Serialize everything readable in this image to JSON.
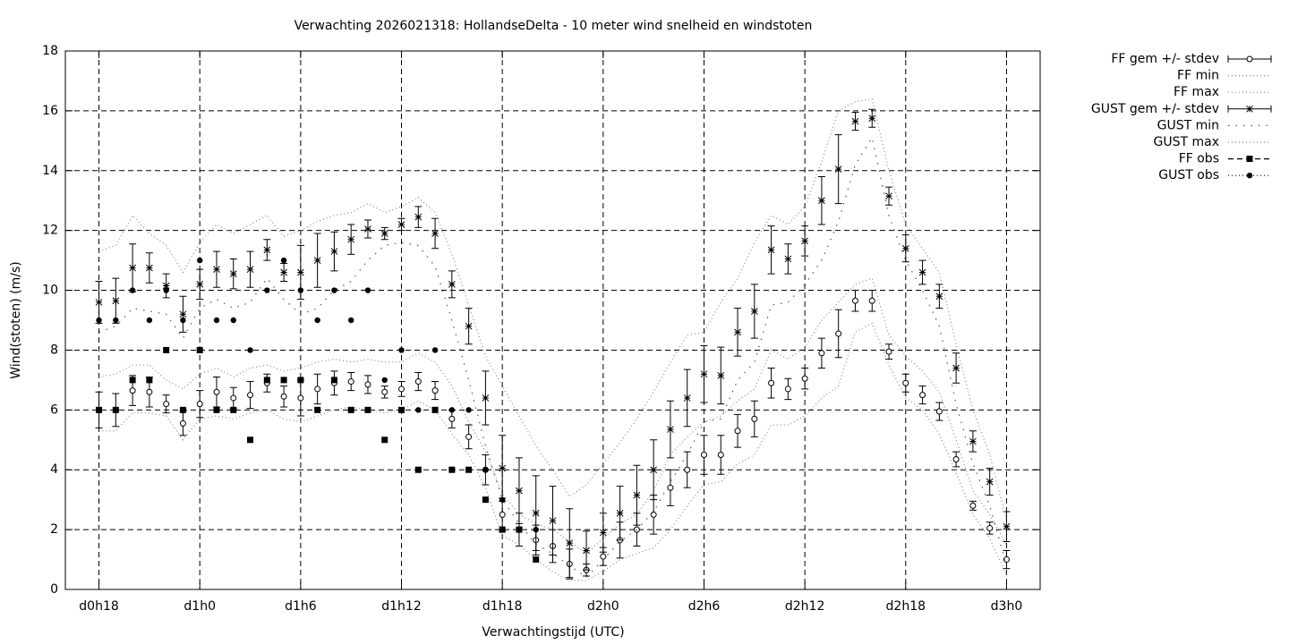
{
  "chart_data": {
    "type": "errorbar-lines",
    "title": "Verwachting 2026021318: HollandseDelta - 10 meter wind snelheid en windstoten",
    "xlabel": "Verwachtingstijd (UTC)",
    "ylabel": "Wind(stoten) (m/s)",
    "x": [
      18,
      19,
      20,
      21,
      22,
      23,
      24,
      25,
      26,
      27,
      28,
      29,
      30,
      31,
      32,
      33,
      34,
      35,
      36,
      37,
      38,
      39,
      40,
      41,
      42,
      43,
      44,
      45,
      46,
      47,
      48,
      49,
      50,
      51,
      52,
      53,
      54,
      55,
      56,
      57,
      58,
      59,
      60,
      61,
      62,
      63,
      64,
      65,
      66,
      67,
      68,
      69,
      70,
      71,
      72
    ],
    "xlim": [
      16,
      74
    ],
    "xticks": [
      {
        "value": 18,
        "label": "d0h18"
      },
      {
        "value": 24,
        "label": "d1h0"
      },
      {
        "value": 30,
        "label": "d1h6"
      },
      {
        "value": 36,
        "label": "d1h12"
      },
      {
        "value": 42,
        "label": "d1h18"
      },
      {
        "value": 48,
        "label": "d2h0"
      },
      {
        "value": 54,
        "label": "d2h6"
      },
      {
        "value": 60,
        "label": "d2h12"
      },
      {
        "value": 66,
        "label": "d2h18"
      },
      {
        "value": 72,
        "label": "d3h0"
      }
    ],
    "ylim": [
      0,
      18
    ],
    "yticks": [
      0,
      2,
      4,
      6,
      8,
      10,
      12,
      14,
      16,
      18
    ],
    "grid": true,
    "legend": "outside-right",
    "series": [
      {
        "name": "FF gem +/- stdev",
        "color": "#000000",
        "kind": "errorbar",
        "marker": "circle-open",
        "values": [
          6.0,
          6.0,
          6.65,
          6.6,
          6.2,
          5.55,
          6.2,
          6.6,
          6.4,
          6.5,
          6.9,
          6.45,
          6.4,
          6.7,
          6.9,
          6.95,
          6.85,
          6.6,
          6.7,
          6.95,
          6.65,
          5.7,
          5.1,
          4.0,
          2.5,
          2.0,
          1.65,
          1.45,
          0.85,
          0.65,
          1.1,
          1.65,
          2.0,
          2.5,
          3.4,
          4.0,
          4.5,
          4.5,
          5.3,
          5.7,
          6.9,
          6.7,
          7.05,
          7.9,
          8.55,
          9.65,
          9.65,
          7.95,
          6.9,
          6.5,
          5.95,
          4.35,
          2.8,
          2.05,
          1.0
        ],
        "errors": [
          0.6,
          0.55,
          0.5,
          0.5,
          0.3,
          0.4,
          0.45,
          0.5,
          0.35,
          0.45,
          0.3,
          0.35,
          0.6,
          0.5,
          0.4,
          0.3,
          0.3,
          0.2,
          0.25,
          0.3,
          0.3,
          0.3,
          0.4,
          0.5,
          0.55,
          0.55,
          0.5,
          0.55,
          0.5,
          0.2,
          0.3,
          0.6,
          0.55,
          0.65,
          0.6,
          0.6,
          0.65,
          0.65,
          0.55,
          0.6,
          0.5,
          0.35,
          0.35,
          0.5,
          0.8,
          0.35,
          0.35,
          0.25,
          0.3,
          0.3,
          0.3,
          0.25,
          0.15,
          0.2,
          0.3
        ]
      },
      {
        "name": "FF min",
        "color": "#888888",
        "kind": "line",
        "dash": "dotted",
        "values": [
          5.3,
          5.3,
          5.9,
          5.9,
          5.8,
          5.0,
          5.7,
          5.8,
          5.7,
          5.9,
          6.0,
          5.7,
          5.6,
          5.8,
          6.0,
          6.1,
          6.0,
          5.9,
          6.0,
          6.3,
          6.0,
          5.2,
          4.5,
          3.4,
          1.8,
          1.5,
          1.0,
          0.6,
          0.3,
          0.3,
          0.6,
          1.0,
          1.2,
          1.4,
          2.0,
          2.8,
          3.5,
          3.6,
          4.2,
          4.5,
          5.5,
          5.5,
          5.8,
          6.4,
          6.8,
          8.6,
          8.9,
          7.5,
          6.4,
          6.0,
          5.2,
          3.9,
          2.5,
          1.7,
          0.5
        ]
      },
      {
        "name": "FF max",
        "color": "#888888",
        "kind": "line",
        "dash": "dotted",
        "values": [
          7.1,
          7.2,
          7.5,
          7.5,
          7.0,
          6.7,
          7.2,
          7.4,
          7.1,
          7.4,
          7.5,
          7.3,
          7.4,
          7.6,
          7.7,
          7.6,
          7.7,
          7.6,
          7.6,
          7.9,
          7.6,
          6.8,
          5.6,
          4.6,
          3.2,
          2.5,
          2.2,
          2.0,
          1.6,
          1.2,
          1.7,
          2.2,
          2.5,
          3.3,
          4.5,
          5.1,
          5.6,
          5.8,
          6.3,
          6.7,
          8.0,
          7.7,
          8.1,
          9.0,
          9.6,
          10.2,
          10.4,
          8.5,
          7.8,
          7.3,
          6.6,
          5.0,
          3.3,
          2.5,
          1.5
        ]
      },
      {
        "name": "GUST gem +/- stdev",
        "color": "#000000",
        "kind": "errorbar",
        "marker": "star",
        "values": [
          9.6,
          9.65,
          10.75,
          10.75,
          10.15,
          9.2,
          10.2,
          10.7,
          10.55,
          10.7,
          11.35,
          10.6,
          10.6,
          11.0,
          11.3,
          11.7,
          12.05,
          11.9,
          12.2,
          12.45,
          11.9,
          10.2,
          8.8,
          6.4,
          4.05,
          3.3,
          2.55,
          2.3,
          1.55,
          1.3,
          1.9,
          2.55,
          3.15,
          4.0,
          5.35,
          6.4,
          7.2,
          7.15,
          8.6,
          9.3,
          11.35,
          11.05,
          11.65,
          13.0,
          14.05,
          15.65,
          15.75,
          13.15,
          11.4,
          10.6,
          9.8,
          7.4,
          4.95,
          3.6,
          2.1
        ],
        "errors": [
          0.7,
          0.75,
          0.8,
          0.5,
          0.4,
          0.6,
          0.5,
          0.6,
          0.5,
          0.6,
          0.35,
          0.3,
          0.9,
          0.9,
          0.65,
          0.5,
          0.3,
          0.2,
          0.2,
          0.35,
          0.5,
          0.45,
          0.6,
          0.9,
          1.1,
          1.1,
          1.25,
          1.15,
          1.15,
          0.65,
          0.65,
          0.9,
          1.0,
          1.0,
          0.95,
          0.95,
          0.95,
          0.95,
          0.8,
          0.9,
          0.8,
          0.5,
          0.5,
          0.8,
          1.15,
          0.3,
          0.3,
          0.3,
          0.45,
          0.4,
          0.4,
          0.5,
          0.35,
          0.45,
          0.5
        ]
      },
      {
        "name": "GUST min",
        "color": "#555555",
        "kind": "line",
        "dash": "sparse",
        "values": [
          8.6,
          8.8,
          9.4,
          9.3,
          9.2,
          8.4,
          9.4,
          9.7,
          9.4,
          9.6,
          10.4,
          9.7,
          9.2,
          9.4,
          10.0,
          10.3,
          11.0,
          11.5,
          11.6,
          11.5,
          10.8,
          9.0,
          7.0,
          4.8,
          3.0,
          2.2,
          1.5,
          1.2,
          0.8,
          0.4,
          1.0,
          1.6,
          2.0,
          2.6,
          3.6,
          4.5,
          5.6,
          5.7,
          7.0,
          7.6,
          9.5,
          9.6,
          10.2,
          11.0,
          12.3,
          14.2,
          15.1,
          12.5,
          11.0,
          10.0,
          8.8,
          6.2,
          4.2,
          2.8,
          0.8
        ]
      },
      {
        "name": "GUST max",
        "color": "#888888",
        "kind": "line",
        "dash": "dotted",
        "values": [
          11.3,
          11.5,
          12.5,
          11.9,
          11.5,
          10.6,
          11.6,
          12.2,
          11.9,
          12.2,
          12.5,
          11.8,
          12.0,
          12.3,
          12.5,
          12.6,
          12.9,
          12.6,
          12.8,
          13.1,
          12.6,
          11.2,
          9.5,
          7.8,
          6.8,
          5.8,
          4.8,
          4.0,
          3.1,
          3.5,
          4.2,
          4.9,
          5.7,
          6.6,
          7.6,
          8.5,
          8.6,
          9.6,
          10.4,
          11.6,
          12.5,
          12.2,
          12.8,
          14.3,
          16.0,
          16.3,
          16.4,
          14.0,
          12.2,
          11.4,
          10.6,
          8.2,
          6.0,
          4.5,
          2.3
        ]
      },
      {
        "name": "FF obs",
        "color": "#000000",
        "kind": "points",
        "marker": "square",
        "dash": "dashed",
        "x": [
          18,
          19,
          20,
          21,
          22,
          23,
          24,
          25,
          26,
          27,
          28,
          29,
          30,
          31,
          32,
          33,
          34,
          35,
          36,
          37,
          38,
          39,
          40,
          41,
          42,
          43,
          44
        ],
        "values": [
          6,
          6,
          7,
          7,
          8,
          6,
          8,
          6,
          6,
          5,
          7,
          7,
          7,
          6,
          7,
          6,
          6,
          5,
          6,
          4,
          6,
          4,
          4,
          3,
          2,
          2,
          1
        ]
      },
      {
        "name": "GUST obs",
        "color": "#000000",
        "kind": "points",
        "marker": "circle",
        "dash": "dotted",
        "x": [
          18,
          19,
          20,
          21,
          22,
          23,
          24,
          25,
          26,
          27,
          28,
          29,
          30,
          31,
          32,
          33,
          34,
          35,
          36,
          37,
          38,
          39,
          40,
          41,
          42,
          43,
          44
        ],
        "values": [
          9,
          9,
          10,
          9,
          10,
          9,
          11,
          9,
          9,
          8,
          10,
          11,
          10,
          9,
          10,
          9,
          10,
          7,
          8,
          6,
          8,
          6,
          6,
          4,
          3,
          2,
          2
        ]
      }
    ]
  }
}
